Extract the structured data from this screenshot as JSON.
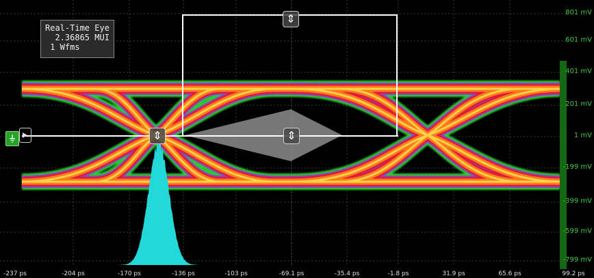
{
  "info_box": {
    "title": "Real-Time Eye",
    "mui": "2.36865 MUI",
    "wfms": "1 Wfms"
  },
  "y_axis": {
    "unit": "mV",
    "ticks": [
      "801 mV",
      "601 mV",
      "401 mV",
      "201 mV",
      "1 mV",
      "-199 mV",
      "-399 mV",
      "-599 mV",
      "-799 mV"
    ]
  },
  "x_axis": {
    "unit": "ps",
    "ticks": [
      "-237 ps",
      "-204 ps",
      "-170 ps",
      "-136 ps",
      "-103 ps",
      "-69.1 ps",
      "-35.4 ps",
      "-1.8 ps",
      "31.9 ps",
      "65.6 ps",
      "99.2 ps"
    ]
  },
  "colors": {
    "background": "#000000",
    "grid": "#3a3a3a",
    "axis_label_y": "#3ec93e",
    "axis_label_x": "#e0e0e0",
    "histogram": "#22d8d8",
    "mask_box": "#ffffff",
    "ref_marker": "#27a127",
    "eye_heat": [
      "#2ccc2c",
      "#8a3fd8",
      "#e01a3c",
      "#ff7a1a",
      "#ffd24a"
    ]
  },
  "icons": {
    "ref_marker": "ground-icon",
    "handle": "vertical-resize-icon",
    "trigger": "play-arrow-icon"
  },
  "handle_glyph": "⇕"
}
